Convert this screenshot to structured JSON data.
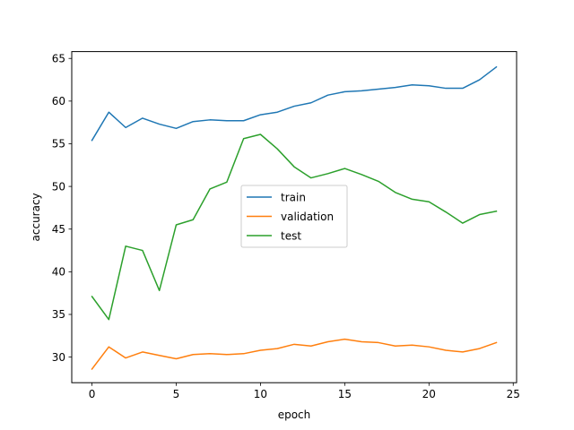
{
  "chart_data": {
    "type": "line",
    "xlabel": "epoch",
    "ylabel": "accuracy",
    "xlim": [
      -1.2,
      25.2
    ],
    "ylim": [
      27.0,
      65.8
    ],
    "x_ticks": [
      0,
      5,
      10,
      15,
      20,
      25
    ],
    "y_ticks": [
      30,
      35,
      40,
      45,
      50,
      55,
      60,
      65
    ],
    "grid": false,
    "legend_position": "center",
    "x": [
      0,
      1,
      2,
      3,
      4,
      5,
      6,
      7,
      8,
      9,
      10,
      11,
      12,
      13,
      14,
      15,
      16,
      17,
      18,
      19,
      20,
      21,
      22,
      23,
      24
    ],
    "series": [
      {
        "name": "train",
        "color": "#1f77b4",
        "values": [
          55.4,
          58.7,
          56.9,
          58.0,
          57.3,
          56.8,
          57.6,
          57.8,
          57.7,
          57.7,
          58.4,
          58.7,
          59.4,
          59.8,
          60.7,
          61.1,
          61.2,
          61.4,
          61.6,
          61.9,
          61.8,
          61.5,
          61.5,
          62.5,
          64.0
        ]
      },
      {
        "name": "validation",
        "color": "#ff7f0e",
        "values": [
          28.6,
          31.2,
          29.9,
          30.6,
          30.2,
          29.8,
          30.3,
          30.4,
          30.3,
          30.4,
          30.8,
          31.0,
          31.5,
          31.3,
          31.8,
          32.1,
          31.8,
          31.7,
          31.3,
          31.4,
          31.2,
          30.8,
          30.6,
          31.0,
          31.7
        ]
      },
      {
        "name": "test",
        "color": "#2ca02c",
        "values": [
          37.1,
          34.4,
          43.0,
          42.5,
          37.8,
          45.5,
          46.1,
          49.7,
          50.5,
          55.6,
          56.1,
          54.4,
          52.3,
          51.0,
          51.5,
          52.1,
          51.4,
          50.6,
          49.3,
          48.5,
          48.2,
          47.0,
          45.7,
          46.7,
          47.1
        ]
      }
    ]
  }
}
